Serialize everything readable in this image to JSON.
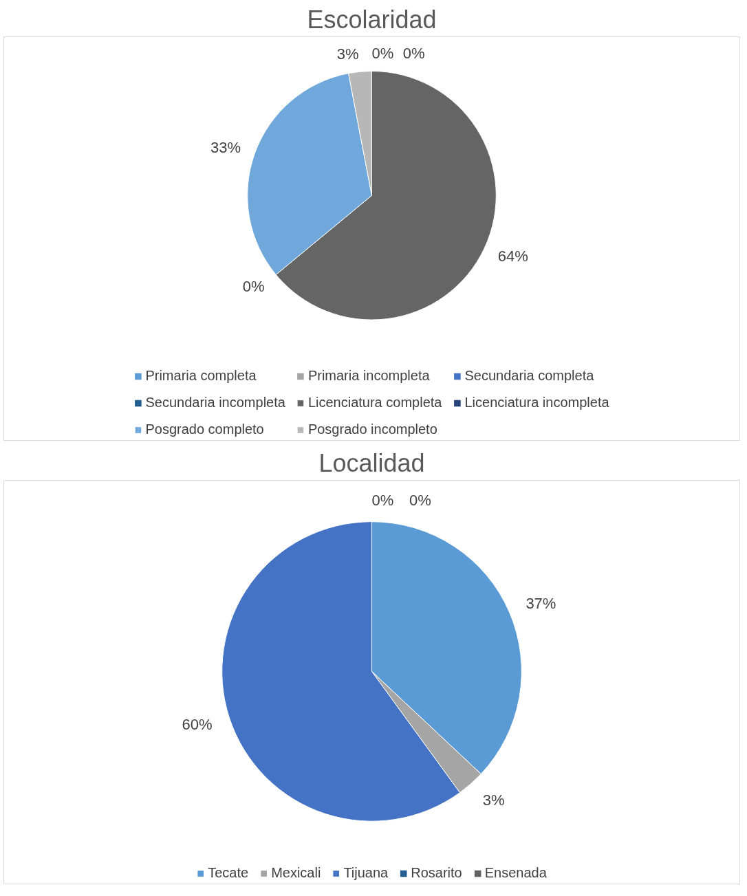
{
  "chart_data": [
    {
      "type": "pie",
      "title": "Escolaridad",
      "categories": [
        "Primaria completa",
        "Primaria incompleta",
        "Secundaria completa",
        "Secundaria incompleta",
        "Licenciatura completa",
        "Licenciatura incompleta",
        "Posgrado completo",
        "Posgrado incompleto"
      ],
      "values": [
        0,
        0,
        0,
        0,
        64,
        0,
        33,
        3
      ],
      "colors": [
        "#5b9bd5",
        "#a5a5a5",
        "#4472c4",
        "#255e91",
        "#656565",
        "#264478",
        "#70a8dc",
        "#b7b7b7"
      ],
      "value_labels": [
        "0%",
        "0%",
        null,
        null,
        "64%",
        "0%",
        "33%",
        "3%"
      ],
      "legend": "bottom"
    },
    {
      "type": "pie",
      "title": "Localidad",
      "categories": [
        "Tecate",
        "Mexicali",
        "Tijuana",
        "Rosarito",
        "Ensenada"
      ],
      "values": [
        37,
        3,
        60,
        0,
        0
      ],
      "colors": [
        "#5b9bd5",
        "#a5a5a5",
        "#4472c4",
        "#255e91",
        "#636363"
      ],
      "value_labels": [
        "37%",
        "3%",
        "60%",
        "0%",
        "0%"
      ],
      "legend": "bottom"
    }
  ]
}
